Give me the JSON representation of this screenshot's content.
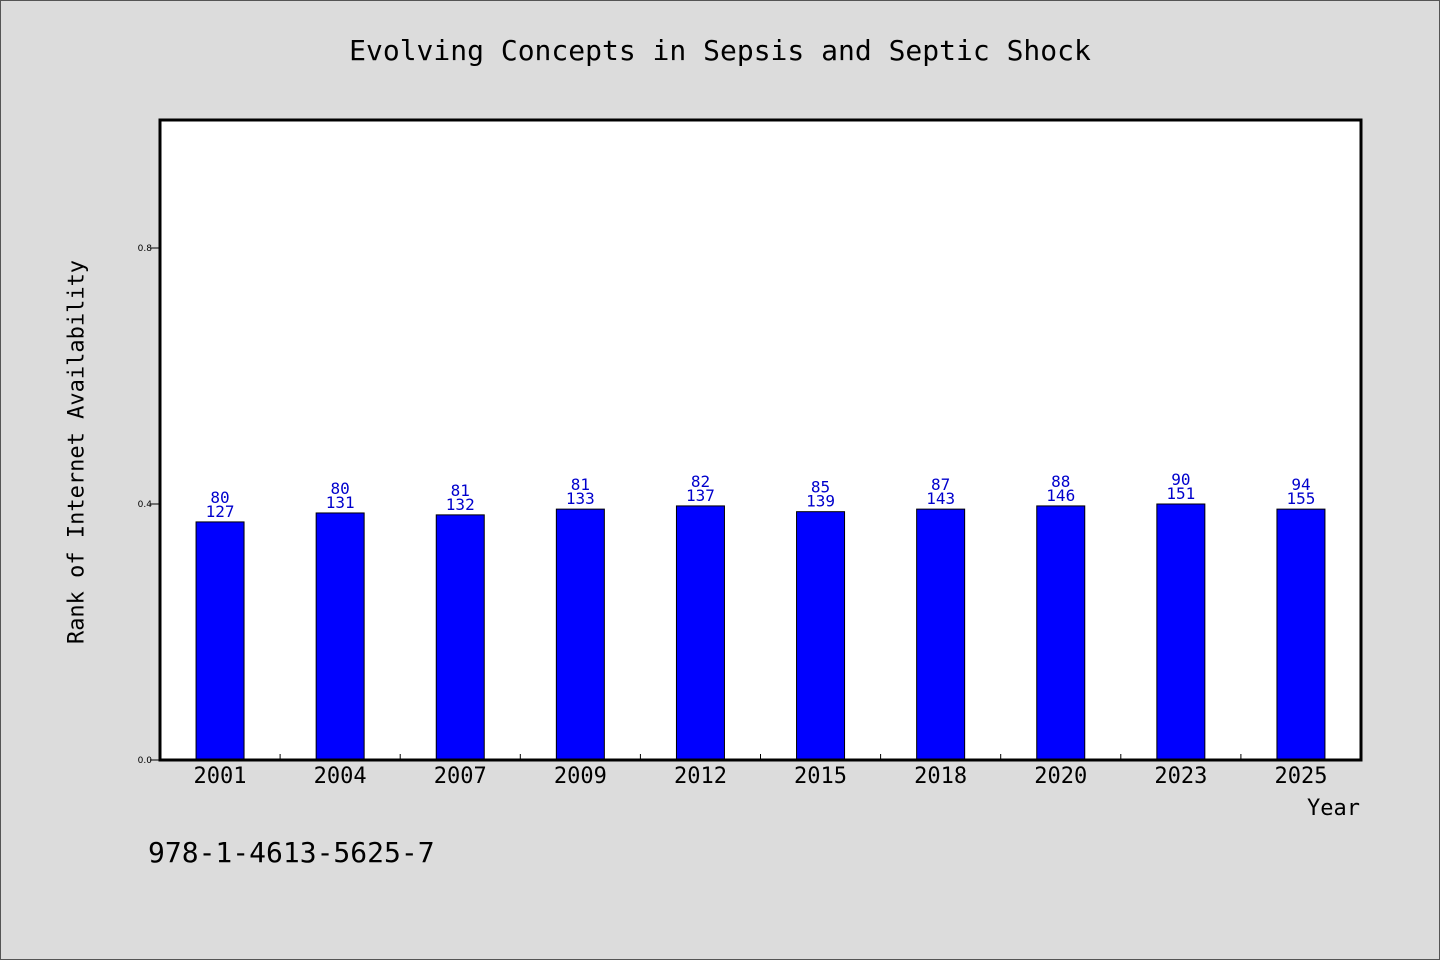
{
  "chart_data": {
    "type": "bar",
    "title": "Evolving Concepts in Sepsis and Septic Shock",
    "xlabel": "Year",
    "ylabel": "Rank of Internet Availability",
    "categories": [
      "2001",
      "2004",
      "2007",
      "2009",
      "2012",
      "2015",
      "2018",
      "2020",
      "2023",
      "2025"
    ],
    "series": [
      {
        "values": [
          0.372,
          0.386,
          0.383,
          0.392,
          0.397,
          0.388,
          0.392,
          0.397,
          0.4,
          0.392
        ],
        "color": "#0000ff"
      }
    ],
    "annotations_top": [
      "80",
      "80",
      "81",
      "81",
      "82",
      "85",
      "87",
      "88",
      "90",
      "94"
    ],
    "annotations_bottom": [
      "127",
      "131",
      "132",
      "133",
      "137",
      "139",
      "143",
      "146",
      "151",
      "155"
    ],
    "ylim": [
      0,
      1.0
    ],
    "yticks": [
      0.0,
      0.4,
      0.8
    ],
    "ytick_labels": [
      "0.0",
      "0.4",
      "0.8"
    ],
    "grid": false,
    "annotation_color": "#0000cc"
  },
  "footer": {
    "isbn": "978-1-4613-5625-7"
  }
}
